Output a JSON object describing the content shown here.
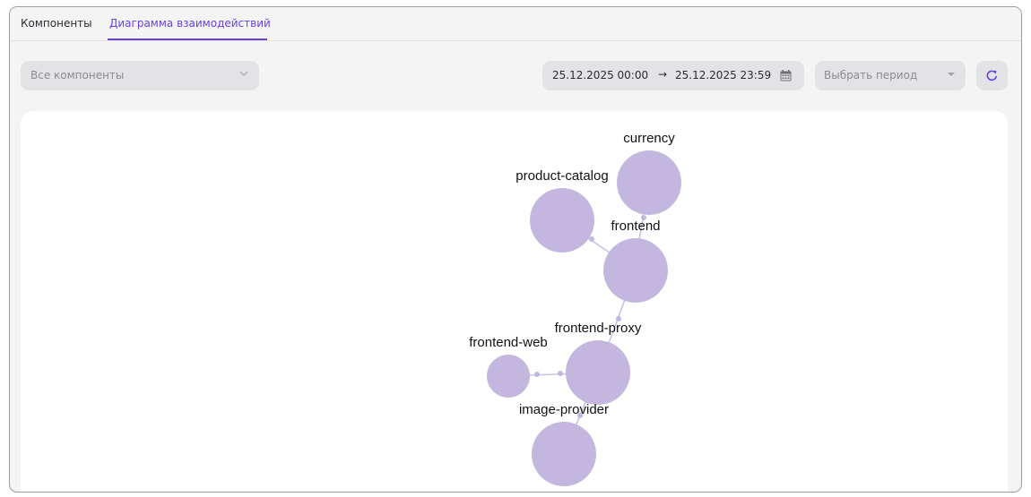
{
  "tabs": [
    {
      "label": "Компоненты",
      "active": false
    },
    {
      "label": "Диаграмма взаимодействий",
      "active": true
    }
  ],
  "filters": {
    "component_select": {
      "placeholder": "Все компоненты",
      "icon": "chevron-down-icon"
    },
    "date_range": {
      "from": "25.12.2025 00:00",
      "arrow": "→",
      "to": "25.12.2025 23:59",
      "icon": "calendar-icon"
    },
    "period_select": {
      "placeholder": "Выбрать период",
      "icon": "caret-down-icon"
    },
    "refresh": {
      "icon": "refresh-icon"
    }
  },
  "colors": {
    "accent": "#6a3fe0",
    "node": "#c3b7e0",
    "edge": "#c8c0e4"
  },
  "graph": {
    "nodes": [
      {
        "id": "currency",
        "label": "currency"
      },
      {
        "id": "product-catalog",
        "label": "product-catalog"
      },
      {
        "id": "frontend",
        "label": "frontend"
      },
      {
        "id": "frontend-proxy",
        "label": "frontend-proxy"
      },
      {
        "id": "frontend-web",
        "label": "frontend-web"
      },
      {
        "id": "image-provider",
        "label": "image-provider"
      }
    ],
    "edges": [
      {
        "from": "frontend",
        "to": "currency"
      },
      {
        "from": "frontend",
        "to": "product-catalog"
      },
      {
        "from": "frontend-proxy",
        "to": "frontend"
      },
      {
        "from": "frontend-web",
        "to": "frontend-proxy"
      },
      {
        "from": "frontend-proxy",
        "to": "image-provider"
      }
    ]
  }
}
